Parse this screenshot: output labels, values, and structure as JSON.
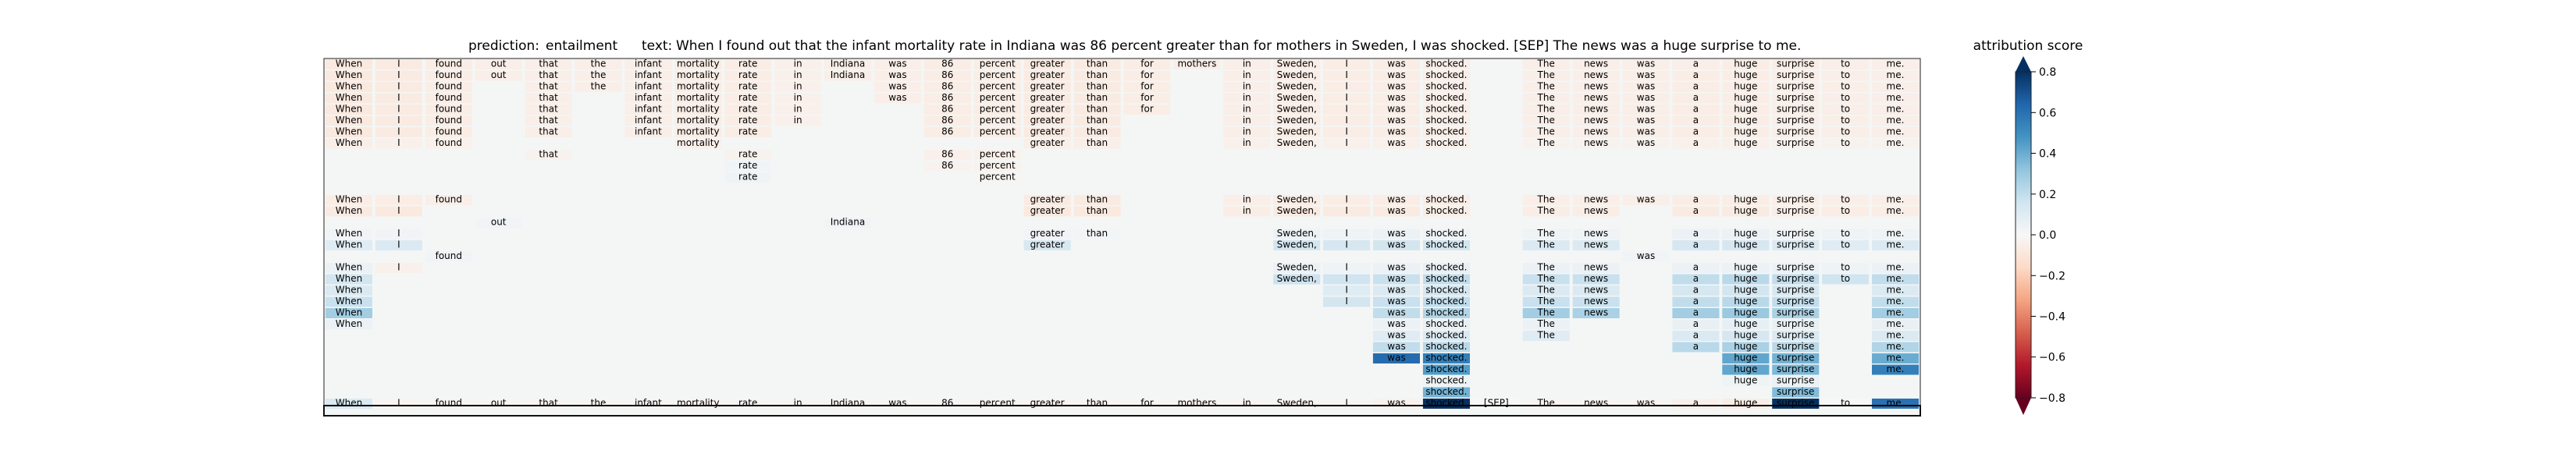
{
  "chart_data": {
    "type": "heatmap",
    "header": {
      "prediction_label": "prediction:",
      "prediction_value": "entailment",
      "text_label": "text:",
      "text_value": "When I found out that the infant mortality rate in Indiana was 86 percent greater than for mothers in Sweden, I was shocked. [SEP] The news was a huge surprise to me."
    },
    "colorbar": {
      "title": "attribution score",
      "vmin": -0.8,
      "vmax": 0.8,
      "ticks": [
        "0.8",
        "0.6",
        "0.4",
        "0.2",
        "0.0",
        "−0.2",
        "−0.4",
        "−0.6",
        "−0.8"
      ],
      "tick_values": [
        0.8,
        0.6,
        0.4,
        0.2,
        0.0,
        -0.2,
        -0.4,
        -0.6,
        -0.8
      ],
      "colormap": "RdBu",
      "extend": "both"
    },
    "tokens": [
      "When",
      "I",
      "found",
      "out",
      "that",
      "the",
      "infant",
      "mortality",
      "rate",
      "in",
      "Indiana",
      "was",
      "86",
      "percent",
      "greater",
      "than",
      "for",
      "mothers",
      "in",
      "Sweden,",
      "I",
      "was",
      "shocked.",
      "[SEP]",
      "The",
      "news",
      "was",
      "a",
      "huge",
      "surprise",
      "to",
      "me."
    ],
    "rows": [
      {
        "present": [
          0,
          1,
          2,
          3,
          4,
          5,
          6,
          7,
          8,
          9,
          10,
          11,
          12,
          13,
          14,
          15,
          16,
          17,
          18,
          19,
          20,
          21,
          22,
          24,
          25,
          26,
          27,
          28,
          29,
          30,
          31
        ],
        "values": [
          -0.08,
          -0.07,
          -0.06,
          -0.05,
          -0.05,
          -0.05,
          -0.05,
          -0.06,
          -0.06,
          -0.04,
          -0.05,
          -0.05,
          -0.06,
          -0.06,
          -0.07,
          -0.07,
          -0.06,
          -0.05,
          -0.05,
          -0.06,
          -0.06,
          -0.06,
          -0.05,
          -0.05,
          -0.05,
          -0.05,
          -0.05,
          -0.06,
          -0.06,
          -0.05,
          -0.05
        ]
      },
      {
        "present": [
          0,
          1,
          2,
          3,
          4,
          5,
          6,
          7,
          8,
          9,
          10,
          11,
          12,
          13,
          14,
          15,
          16,
          18,
          19,
          20,
          21,
          22,
          24,
          25,
          26,
          27,
          28,
          29,
          30,
          31
        ],
        "values": [
          -0.08,
          -0.07,
          -0.06,
          -0.05,
          -0.05,
          -0.05,
          -0.05,
          -0.06,
          -0.06,
          -0.04,
          -0.05,
          -0.05,
          -0.06,
          -0.06,
          -0.07,
          -0.07,
          -0.06,
          -0.05,
          -0.06,
          -0.06,
          -0.06,
          -0.05,
          -0.05,
          -0.05,
          -0.05,
          -0.06,
          -0.06,
          -0.05,
          -0.05,
          -0.05
        ]
      },
      {
        "present": [
          0,
          1,
          2,
          4,
          5,
          6,
          7,
          8,
          9,
          11,
          12,
          13,
          14,
          15,
          16,
          18,
          19,
          20,
          21,
          22,
          24,
          25,
          26,
          27,
          28,
          29,
          30,
          31
        ],
        "values": [
          -0.08,
          -0.07,
          -0.06,
          -0.05,
          -0.05,
          -0.05,
          -0.06,
          -0.06,
          -0.04,
          -0.05,
          -0.06,
          -0.06,
          -0.07,
          -0.07,
          -0.06,
          -0.05,
          -0.06,
          -0.06,
          -0.06,
          -0.05,
          -0.05,
          -0.05,
          -0.05,
          -0.06,
          -0.06,
          -0.05,
          -0.05,
          -0.05
        ]
      },
      {
        "present": [
          0,
          1,
          2,
          4,
          6,
          7,
          8,
          9,
          11,
          12,
          13,
          14,
          15,
          16,
          18,
          19,
          20,
          21,
          22,
          24,
          25,
          26,
          27,
          28,
          29,
          30,
          31
        ],
        "values": [
          -0.08,
          -0.07,
          -0.06,
          -0.05,
          -0.05,
          -0.06,
          -0.06,
          -0.04,
          -0.05,
          -0.06,
          -0.06,
          -0.07,
          -0.07,
          -0.06,
          -0.05,
          -0.06,
          -0.06,
          -0.06,
          -0.05,
          -0.05,
          -0.05,
          -0.05,
          -0.06,
          -0.06,
          -0.05,
          -0.05,
          -0.05
        ]
      },
      {
        "present": [
          0,
          1,
          2,
          4,
          6,
          7,
          8,
          9,
          12,
          13,
          14,
          15,
          16,
          18,
          19,
          20,
          21,
          22,
          24,
          25,
          26,
          27,
          28,
          29,
          30,
          31
        ],
        "values": [
          -0.08,
          -0.07,
          -0.06,
          -0.05,
          -0.05,
          -0.06,
          -0.06,
          -0.04,
          -0.06,
          -0.06,
          -0.07,
          -0.07,
          -0.06,
          -0.05,
          -0.06,
          -0.06,
          -0.06,
          -0.05,
          -0.05,
          -0.05,
          -0.05,
          -0.06,
          -0.06,
          -0.05,
          -0.05,
          -0.05
        ]
      },
      {
        "present": [
          0,
          1,
          2,
          4,
          6,
          7,
          8,
          9,
          12,
          13,
          14,
          15,
          18,
          19,
          20,
          21,
          22,
          24,
          25,
          26,
          27,
          28,
          29,
          30,
          31
        ],
        "values": [
          -0.08,
          -0.07,
          -0.06,
          -0.05,
          -0.05,
          -0.06,
          -0.06,
          -0.04,
          -0.06,
          -0.06,
          -0.07,
          -0.07,
          -0.05,
          -0.06,
          -0.06,
          -0.06,
          -0.05,
          -0.05,
          -0.05,
          -0.05,
          -0.06,
          -0.06,
          -0.05,
          -0.05,
          -0.05
        ]
      },
      {
        "present": [
          0,
          1,
          2,
          4,
          6,
          7,
          8,
          12,
          13,
          14,
          15,
          18,
          19,
          20,
          21,
          22,
          24,
          25,
          26,
          27,
          28,
          29,
          30,
          31
        ],
        "values": [
          -0.08,
          -0.07,
          -0.06,
          -0.05,
          -0.05,
          -0.06,
          -0.06,
          -0.06,
          -0.06,
          -0.07,
          -0.07,
          -0.05,
          -0.06,
          -0.06,
          -0.06,
          -0.05,
          -0.05,
          -0.05,
          -0.05,
          -0.06,
          -0.06,
          -0.05,
          -0.05,
          -0.05
        ]
      },
      {
        "present": [
          0,
          1,
          2,
          7,
          14,
          15,
          18,
          19,
          20,
          21,
          22,
          24,
          25,
          26,
          27,
          28,
          29,
          30,
          31
        ],
        "values": [
          -0.05,
          -0.04,
          -0.04,
          -0.04,
          -0.05,
          -0.05,
          -0.04,
          -0.04,
          -0.04,
          -0.04,
          -0.04,
          -0.03,
          -0.03,
          -0.03,
          -0.04,
          -0.04,
          -0.03,
          -0.03,
          -0.03
        ]
      },
      {
        "present": [
          4,
          8,
          12,
          13
        ],
        "values": [
          -0.03,
          -0.03,
          -0.04,
          -0.04
        ]
      },
      {
        "present": [
          8,
          12,
          13
        ],
        "values": [
          0.03,
          -0.03,
          -0.03
        ]
      },
      {
        "present": [
          8,
          13
        ],
        "values": [
          0.04,
          -0.02
        ]
      },
      {
        "present": [],
        "values": []
      },
      {
        "present": [
          0,
          1,
          2,
          14,
          15,
          18,
          19,
          20,
          21,
          22,
          24,
          25,
          26,
          27,
          28,
          29,
          30,
          31
        ],
        "values": [
          -0.06,
          -0.06,
          -0.05,
          -0.07,
          -0.07,
          -0.05,
          -0.06,
          -0.06,
          -0.06,
          -0.06,
          -0.05,
          -0.05,
          -0.05,
          -0.06,
          -0.06,
          -0.05,
          -0.05,
          -0.05
        ]
      },
      {
        "present": [
          0,
          1,
          14,
          15,
          18,
          19,
          20,
          21,
          22,
          24,
          25,
          27,
          28,
          29,
          30,
          31
        ],
        "values": [
          -0.07,
          -0.08,
          -0.08,
          -0.08,
          -0.06,
          -0.07,
          -0.07,
          -0.07,
          -0.06,
          -0.06,
          -0.06,
          -0.07,
          -0.07,
          -0.06,
          -0.06,
          -0.06
        ]
      },
      {
        "present": [
          3,
          10
        ],
        "values": [
          0.03,
          0.03
        ]
      },
      {
        "present": [
          0,
          1,
          14,
          15,
          19,
          20,
          21,
          22,
          24,
          25,
          27,
          28,
          29,
          30,
          31
        ],
        "values": [
          0.03,
          0.03,
          0.03,
          0.02,
          0.05,
          0.04,
          0.05,
          0.04,
          0.04,
          0.04,
          0.05,
          0.05,
          0.04,
          0.04,
          0.04
        ]
      },
      {
        "present": [
          0,
          1,
          14,
          19,
          20,
          21,
          22,
          24,
          25,
          27,
          28,
          29,
          30,
          31
        ],
        "values": [
          0.1,
          0.12,
          0.13,
          0.15,
          0.14,
          0.15,
          0.15,
          0.12,
          0.12,
          0.14,
          0.14,
          0.12,
          0.1,
          0.12
        ]
      },
      {
        "present": [
          2,
          26
        ],
        "values": [
          0.03,
          0.03
        ]
      },
      {
        "present": [
          0,
          1,
          19,
          20,
          21,
          22,
          24,
          25,
          27,
          28,
          29,
          30,
          31
        ],
        "values": [
          0.05,
          -0.04,
          0.05,
          0.04,
          0.05,
          0.06,
          0.05,
          0.05,
          0.05,
          0.05,
          0.05,
          0.04,
          0.05
        ]
      },
      {
        "present": [
          0,
          19,
          20,
          21,
          22,
          24,
          25,
          27,
          28,
          29,
          30,
          31
        ],
        "values": [
          0.15,
          0.17,
          0.16,
          0.18,
          0.2,
          0.18,
          0.18,
          0.2,
          0.22,
          0.2,
          0.16,
          0.2
        ]
      },
      {
        "present": [
          0,
          20,
          21,
          22,
          24,
          25,
          27,
          28,
          29,
          31
        ],
        "values": [
          0.12,
          0.1,
          0.12,
          0.14,
          0.12,
          0.12,
          0.14,
          0.15,
          0.13,
          0.12
        ]
      },
      {
        "present": [
          0,
          20,
          21,
          22,
          24,
          25,
          27,
          28,
          29,
          31
        ],
        "values": [
          0.18,
          0.15,
          0.18,
          0.2,
          0.18,
          0.18,
          0.2,
          0.22,
          0.2,
          0.2
        ]
      },
      {
        "present": [
          0,
          21,
          22,
          24,
          25,
          27,
          28,
          29,
          31
        ],
        "values": [
          0.28,
          0.2,
          0.24,
          0.28,
          0.26,
          0.28,
          0.3,
          0.26,
          0.28
        ]
      },
      {
        "present": [
          0,
          21,
          22,
          24,
          27,
          28,
          29,
          31
        ],
        "values": [
          0.05,
          0.05,
          0.06,
          0.05,
          0.06,
          0.07,
          0.06,
          0.06
        ]
      },
      {
        "present": [
          21,
          22,
          24,
          27,
          28,
          29,
          31
        ],
        "values": [
          0.1,
          0.12,
          0.1,
          0.12,
          0.14,
          0.12,
          0.12
        ]
      },
      {
        "present": [
          21,
          22,
          27,
          28,
          29,
          31
        ],
        "values": [
          0.2,
          0.22,
          0.22,
          0.26,
          0.22,
          0.24
        ]
      },
      {
        "present": [
          21,
          22,
          28,
          29,
          31
        ],
        "values": [
          0.62,
          0.55,
          0.42,
          0.38,
          0.4
        ]
      },
      {
        "present": [
          22,
          28,
          29,
          31
        ],
        "values": [
          0.45,
          0.42,
          0.36,
          0.55
        ]
      },
      {
        "present": [
          22,
          28,
          29
        ],
        "values": [
          0.04,
          0.04,
          0.05
        ]
      },
      {
        "present": [
          22,
          29
        ],
        "values": [
          0.38,
          0.35
        ]
      },
      {
        "present": [
          0,
          1,
          2,
          3,
          4,
          5,
          6,
          7,
          8,
          9,
          10,
          11,
          12,
          13,
          14,
          15,
          16,
          17,
          18,
          19,
          20,
          21,
          22,
          23,
          24,
          25,
          26,
          27,
          28,
          29,
          30,
          31
        ],
        "values": [
          0.12,
          -0.02,
          -0.02,
          -0.01,
          -0.02,
          -0.01,
          -0.01,
          -0.02,
          -0.01,
          -0.01,
          -0.02,
          -0.01,
          -0.01,
          -0.02,
          -0.02,
          -0.02,
          -0.01,
          -0.02,
          -0.02,
          -0.02,
          -0.01,
          -0.03,
          0.85,
          0.0,
          -0.02,
          -0.02,
          -0.02,
          -0.04,
          -0.06,
          0.82,
          0.0,
          0.6
        ]
      }
    ]
  }
}
